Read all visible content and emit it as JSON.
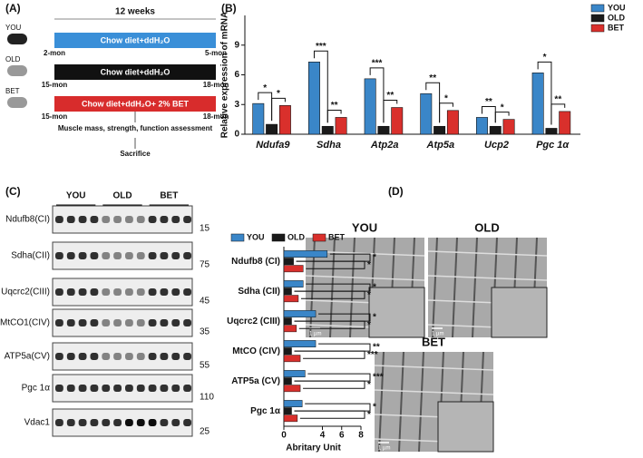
{
  "panel_a": {
    "label": "(A)",
    "duration": "12 weeks",
    "groups": [
      {
        "name": "YOU",
        "diet": "Chow diet+ddH₂O",
        "start": "2-mon",
        "end": "5-mon"
      },
      {
        "name": "OLD",
        "diet": "Chow diet+ddH₂O",
        "start": "15-mon",
        "end": "18-mon"
      },
      {
        "name": "BET",
        "diet": "Chow diet+ddH₂O+ 2% BET",
        "start": "15-mon",
        "end": "18-mon"
      }
    ],
    "steps": [
      "Muscle mass, strength, function assessment",
      "Sacrifice"
    ]
  },
  "panel_b": {
    "label": "(B)"
  },
  "panel_c": {
    "label": "(C)",
    "groups": [
      "YOU",
      "OLD",
      "BET"
    ],
    "rows": [
      {
        "protein": "Ndufb8(CI)",
        "kda": "15"
      },
      {
        "protein": "Sdha(CII)",
        "kda": "75"
      },
      {
        "protein": "Uqcrc2(CIII)",
        "kda": "45"
      },
      {
        "protein": "MtCO1(CIV)",
        "kda": "35"
      },
      {
        "protein": "ATP5a(CV)",
        "kda": "55"
      },
      {
        "protein": "Pgc 1α",
        "kda": "110"
      },
      {
        "protein": "Vdac1",
        "kda": "25"
      }
    ]
  },
  "panel_d": {
    "label": "(D)",
    "images": [
      {
        "title": "YOU",
        "scale": "1 µm"
      },
      {
        "title": "OLD",
        "scale": "1 µm"
      },
      {
        "title": "BET",
        "scale": "1 µm"
      }
    ]
  },
  "chart_data": [
    {
      "type": "bar",
      "y_label": "Relative expression of mRNA",
      "categories": [
        "Ndufa9",
        "Sdha",
        "Atp2a",
        "Atp5a",
        "Ucp2",
        "Pgc 1α"
      ],
      "series": [
        {
          "name": "YOU",
          "color": "#3a86c8",
          "values": [
            3.1,
            7.3,
            5.6,
            4.1,
            1.7,
            6.2
          ]
        },
        {
          "name": "OLD",
          "color": "#1a1a1a",
          "values": [
            1.0,
            0.8,
            0.8,
            0.8,
            0.8,
            0.6
          ]
        },
        {
          "name": "BET",
          "color": "#d9302c",
          "values": [
            2.9,
            1.7,
            2.7,
            2.4,
            1.5,
            2.3
          ]
        }
      ],
      "significance": [
        [
          "*",
          "*"
        ],
        [
          "***",
          "**"
        ],
        [
          "***",
          "**"
        ],
        [
          "**",
          "*"
        ],
        [
          "**",
          "*"
        ],
        [
          "*",
          "**"
        ]
      ],
      "ylim": [
        0,
        12
      ],
      "yticks": [
        0,
        3,
        6,
        9
      ],
      "legend": "top-right"
    },
    {
      "type": "hbar",
      "x_label": "Abritary Unit",
      "categories": [
        "Ndufb8 (CI)",
        "Sdha (CII)",
        "Uqcrc2 (CIII)",
        "MtCO (CIV)",
        "ATP5a (CV)",
        "Pgc 1α"
      ],
      "series": [
        {
          "name": "YOU",
          "color": "#3a86c8",
          "values": [
            4.5,
            2.0,
            3.3,
            3.3,
            2.2,
            1.9
          ]
        },
        {
          "name": "OLD",
          "color": "#1a1a1a",
          "values": [
            1.0,
            0.8,
            0.8,
            0.8,
            0.8,
            0.8
          ]
        },
        {
          "name": "BET",
          "color": "#d9302c",
          "values": [
            2.0,
            1.5,
            1.3,
            1.7,
            1.7,
            1.4
          ]
        }
      ],
      "significance": [
        [
          "*",
          "*"
        ],
        [
          "*",
          "*"
        ],
        [
          "*",
          "*"
        ],
        [
          "**",
          "***"
        ],
        [
          "***",
          "*"
        ],
        [
          "*",
          "*"
        ]
      ],
      "xlim": [
        0,
        8
      ],
      "xticks": [
        0,
        4,
        6,
        8
      ],
      "legend": "top"
    }
  ]
}
